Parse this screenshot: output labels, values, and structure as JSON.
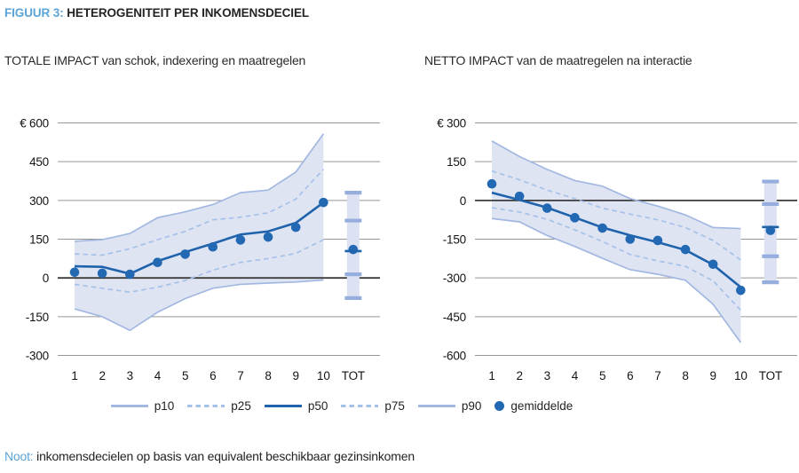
{
  "figure": {
    "label": "FIGUUR 3:",
    "title": "HETEROGENITEIT PER INKOMENSDECIEL"
  },
  "note": {
    "label": "Noot:",
    "text": "inkomensdecielen op basis van equivalent beschikbaar gezinsinkomen"
  },
  "legend": [
    {
      "label": "p10",
      "style": "light-solid-line"
    },
    {
      "label": "p25",
      "style": "dashed-line"
    },
    {
      "label": "p50",
      "style": "dark-solid-line"
    },
    {
      "label": "p75",
      "style": "dashed-line"
    },
    {
      "label": "p90",
      "style": "light-solid-line"
    },
    {
      "label": "gemiddelde",
      "style": "dot"
    }
  ],
  "colors": {
    "accent_blue_text": "#5ba4d9",
    "band_fill": "#dfe4f3",
    "tot_band_fill": "#dde2f2",
    "light_line": "#a2b8e0",
    "dashed_line": "#a6c1e8",
    "dark_line": "#1e63ac",
    "dot": "#2368b2",
    "tot_cap": "#96aedd",
    "grid": "#979797",
    "zero_line": "#3c3c3c",
    "text": "#141414"
  },
  "chart_data": [
    {
      "type": "line",
      "title": "TOTALE IMPACT van schok, indexering en maatregelen",
      "xlabel": "",
      "ylabel": "€",
      "categories": [
        "1",
        "2",
        "3",
        "4",
        "5",
        "6",
        "7",
        "8",
        "9",
        "10",
        "TOT"
      ],
      "ylim": [
        -300,
        600
      ],
      "ytick_labels": [
        "€ 600",
        "450",
        "300",
        "150",
        "0",
        "-150",
        "-300"
      ],
      "ytick_values": [
        600,
        450,
        300,
        150,
        0,
        -150,
        -300
      ],
      "grid": true,
      "legend_position": "bottom",
      "series": [
        {
          "name": "p90",
          "values": [
            142,
            148,
            172,
            233,
            256,
            284,
            330,
            340,
            410,
            558
          ]
        },
        {
          "name": "p75",
          "values": [
            93,
            88,
            113,
            148,
            180,
            225,
            235,
            252,
            305,
            420
          ]
        },
        {
          "name": "p50",
          "values": [
            45,
            43,
            16,
            65,
            100,
            133,
            168,
            180,
            213,
            292
          ]
        },
        {
          "name": "p25",
          "values": [
            -25,
            -40,
            -55,
            -36,
            -10,
            30,
            60,
            75,
            95,
            148
          ]
        },
        {
          "name": "p10",
          "values": [
            -120,
            -150,
            -203,
            -133,
            -80,
            -40,
            -25,
            -20,
            -16,
            -8
          ]
        },
        {
          "name": "gemiddelde",
          "values": [
            22,
            18,
            14,
            60,
            92,
            120,
            147,
            158,
            196,
            292
          ]
        }
      ],
      "tot": {
        "p90": 330,
        "p75": 222,
        "p50": 104,
        "p25": 14,
        "p10": -78,
        "gemiddelde": 110
      }
    },
    {
      "type": "line",
      "title": "NETTO IMPACT van de maatregelen na interactie",
      "xlabel": "",
      "ylabel": "€",
      "categories": [
        "1",
        "2",
        "3",
        "4",
        "5",
        "6",
        "7",
        "8",
        "9",
        "10",
        "TOT"
      ],
      "ylim": [
        -600,
        300
      ],
      "ytick_labels": [
        "€ 300",
        "150",
        "0",
        "-150",
        "-300",
        "-450",
        "-600"
      ],
      "ytick_values": [
        300,
        150,
        0,
        -150,
        -300,
        -450,
        -600
      ],
      "grid": true,
      "legend_position": "bottom",
      "series": [
        {
          "name": "p90",
          "values": [
            230,
            170,
            120,
            77,
            55,
            7,
            -22,
            -56,
            -105,
            -109
          ]
        },
        {
          "name": "p75",
          "values": [
            114,
            80,
            40,
            7,
            -30,
            -53,
            -75,
            -105,
            -155,
            -230
          ]
        },
        {
          "name": "p50",
          "values": [
            30,
            2,
            -28,
            -66,
            -105,
            -135,
            -162,
            -192,
            -249,
            -336
          ]
        },
        {
          "name": "p25",
          "values": [
            -28,
            -45,
            -73,
            -114,
            -159,
            -209,
            -234,
            -255,
            -311,
            -425
          ]
        },
        {
          "name": "p10",
          "values": [
            -70,
            -83,
            -136,
            -178,
            -224,
            -268,
            -286,
            -309,
            -402,
            -550
          ]
        },
        {
          "name": "gemiddelde",
          "values": [
            64,
            16,
            -30,
            -67,
            -107,
            -150,
            -155,
            -190,
            -247,
            -348
          ]
        }
      ],
      "tot": {
        "p90": 73,
        "p75": -14,
        "p50": -103,
        "p25": -216,
        "p10": -317,
        "gemiddelde": -116
      }
    }
  ]
}
